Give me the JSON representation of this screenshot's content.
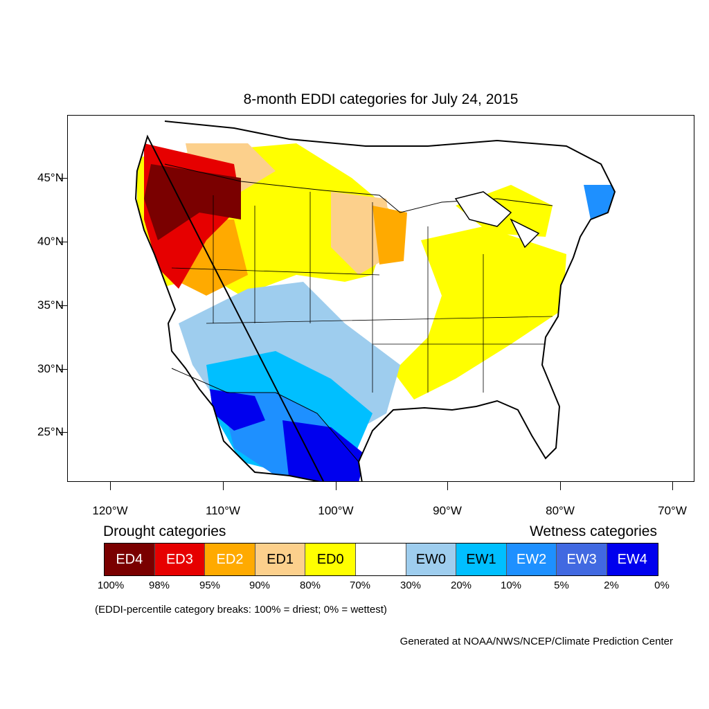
{
  "title": "8-month EDDI categories for July 24, 2015",
  "map": {
    "latitude_labels": [
      "45°N",
      "40°N",
      "35°N",
      "30°N",
      "25°N"
    ],
    "longitude_labels": [
      "120°W",
      "110°W",
      "100°W",
      "90°W",
      "80°W",
      "70°W"
    ]
  },
  "legend": {
    "drought_heading": "Drought categories",
    "wetness_heading": "Wetness categories",
    "categories": [
      {
        "label": "ED4",
        "color": "#7a0000",
        "text_color": "#ffffff"
      },
      {
        "label": "ED3",
        "color": "#e60000",
        "text_color": "#ffffff"
      },
      {
        "label": "ED2",
        "color": "#ffaa00",
        "text_color": "#ffffff"
      },
      {
        "label": "ED1",
        "color": "#fcd08c",
        "text_color": "#000000"
      },
      {
        "label": "ED0",
        "color": "#ffff00",
        "text_color": "#000000"
      },
      {
        "label": "",
        "color": "#ffffff",
        "text_color": "#000000"
      },
      {
        "label": "EW0",
        "color": "#9ecdee",
        "text_color": "#000000"
      },
      {
        "label": "EW1",
        "color": "#00bfff",
        "text_color": "#000000"
      },
      {
        "label": "EW2",
        "color": "#1e90ff",
        "text_color": "#ffffff"
      },
      {
        "label": "EW3",
        "color": "#4169e1",
        "text_color": "#ffffff"
      },
      {
        "label": "EW4",
        "color": "#0000ee",
        "text_color": "#ffffff"
      }
    ],
    "breaks": [
      "100%",
      "98%",
      "95%",
      "90%",
      "80%",
      "70%",
      "30%",
      "20%",
      "10%",
      "5%",
      "2%",
      "0%"
    ]
  },
  "note": "(EDDI-percentile category breaks: 100% = driest; 0% = wettest)",
  "credit": "Generated at NOAA/NWS/NCEP/Climate Prediction Center"
}
